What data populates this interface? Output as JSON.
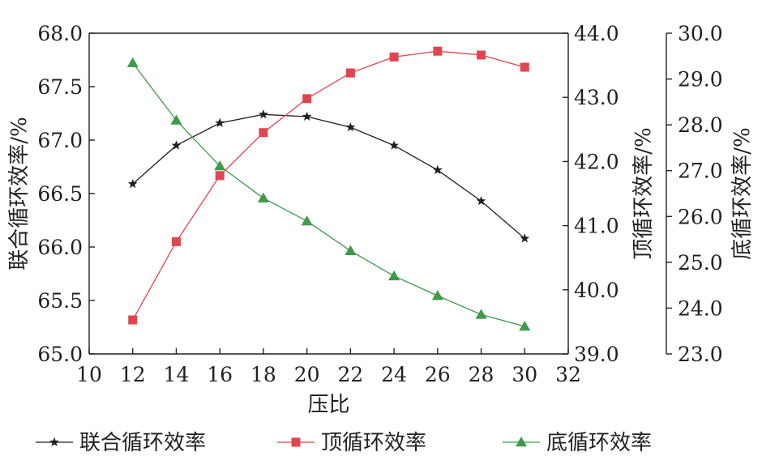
{
  "chart_data": {
    "type": "line",
    "x": [
      12,
      14,
      16,
      18,
      20,
      22,
      24,
      26,
      28,
      30
    ],
    "xlabel": "压比",
    "xlim": [
      10,
      32
    ],
    "xticks": [
      "10",
      "12",
      "14",
      "16",
      "18",
      "20",
      "22",
      "24",
      "26",
      "28",
      "30",
      "32"
    ],
    "axes": [
      {
        "label": "联合循环效率/%",
        "side": "left",
        "ylim": [
          65.0,
          68.0
        ],
        "ticks": [
          "65.0",
          "65.5",
          "66.0",
          "66.5",
          "67.0",
          "67.5",
          "68.0"
        ]
      },
      {
        "label": "顶循环效率/%",
        "side": "right",
        "ylim": [
          39.0,
          44.0
        ],
        "ticks": [
          "39.0",
          "40.0",
          "41.0",
          "42.0",
          "43.0",
          "44.0"
        ]
      },
      {
        "label": "底循环效率/%",
        "side": "right-outer",
        "ylim": [
          23.0,
          30.0
        ],
        "ticks": [
          "23.0",
          "24.0",
          "25.0",
          "26.0",
          "27.0",
          "28.0",
          "29.0",
          "30.0"
        ]
      }
    ],
    "series": [
      {
        "name": "联合循环效率",
        "axis": 0,
        "color": "#231f20",
        "marker": "star",
        "values": [
          66.59,
          66.95,
          67.16,
          67.24,
          67.22,
          67.12,
          66.95,
          66.72,
          66.43,
          66.08
        ]
      },
      {
        "name": "顶循环效率",
        "axis": 1,
        "color": "#e04550",
        "marker": "square",
        "values": [
          39.53,
          40.75,
          41.78,
          42.45,
          42.98,
          43.38,
          43.63,
          43.72,
          43.66,
          43.47
        ]
      },
      {
        "name": "底循环效率",
        "axis": 2,
        "color": "#3f9a4a",
        "marker": "triangle",
        "values": [
          29.35,
          28.1,
          27.1,
          26.4,
          25.9,
          25.25,
          24.7,
          24.27,
          23.86,
          23.6
        ]
      }
    ],
    "legend_position": "bottom",
    "grid": false
  }
}
